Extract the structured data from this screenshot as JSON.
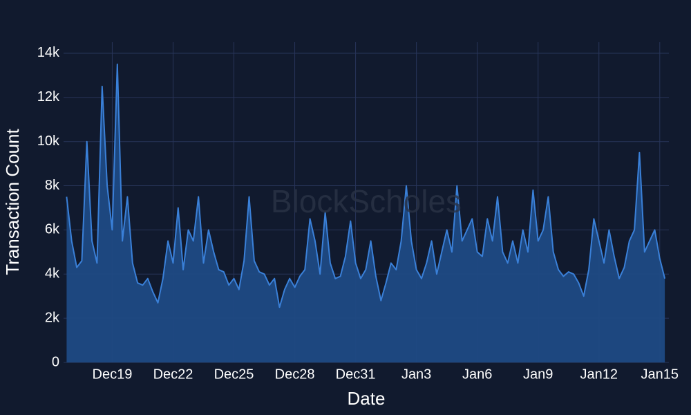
{
  "chart_data": {
    "type": "area",
    "xlabel": "Date",
    "ylabel": "Transaction Count",
    "watermark": "BlockScholes",
    "x": [
      16.75,
      17,
      17.25,
      17.5,
      17.75,
      18,
      18.25,
      18.5,
      18.75,
      19,
      19.25,
      19.5,
      19.75,
      20,
      20.25,
      20.5,
      20.75,
      21,
      21.25,
      21.5,
      21.75,
      22,
      22.25,
      22.5,
      22.75,
      23,
      23.25,
      23.5,
      23.75,
      24,
      24.25,
      24.5,
      24.75,
      25,
      25.25,
      25.5,
      25.75,
      26,
      26.25,
      26.5,
      26.75,
      27,
      27.25,
      27.5,
      27.75,
      28,
      28.25,
      28.5,
      28.75,
      29,
      29.25,
      29.5,
      29.75,
      30,
      30.25,
      30.5,
      30.75,
      31,
      31.25,
      31.5,
      31.75,
      32,
      32.25,
      32.5,
      32.75,
      33,
      33.25,
      33.5,
      33.75,
      34,
      34.25,
      34.5,
      34.75,
      35,
      35.25,
      35.5,
      35.75,
      36,
      36.25,
      36.5,
      36.75,
      37,
      37.25,
      37.5,
      37.75,
      38,
      38.25,
      38.5,
      38.75,
      39,
      39.25,
      39.5,
      39.75,
      40,
      40.25,
      40.5,
      40.75,
      41,
      41.25,
      41.5,
      41.75,
      42,
      42.25,
      42.5,
      42.75,
      43,
      43.25,
      43.5,
      43.75,
      44,
      44.25,
      44.5,
      44.75,
      45,
      45.25,
      45.5,
      45.75,
      46,
      46.25
    ],
    "values": [
      7500,
      5500,
      4300,
      4600,
      10000,
      5500,
      4500,
      12500,
      8000,
      6000,
      13500,
      5500,
      7500,
      4500,
      3600,
      3500,
      3800,
      3200,
      2700,
      3800,
      5500,
      4500,
      7000,
      4200,
      6000,
      5500,
      7500,
      4500,
      6000,
      5000,
      4200,
      4100,
      3500,
      3800,
      3300,
      4600,
      7500,
      4600,
      4100,
      4000,
      3500,
      3800,
      2500,
      3300,
      3800,
      3400,
      3900,
      4200,
      6500,
      5500,
      4000,
      6800,
      4500,
      3800,
      3900,
      4800,
      6400,
      4500,
      3800,
      4200,
      5500,
      3900,
      2800,
      3600,
      4500,
      4200,
      5500,
      8000,
      5500,
      4200,
      3800,
      4500,
      5500,
      4000,
      5000,
      6000,
      5000,
      8000,
      5500,
      6000,
      6500,
      5000,
      4800,
      6500,
      5500,
      7500,
      5000,
      4500,
      5500,
      4500,
      6000,
      5000,
      7800,
      5500,
      6000,
      7500,
      5000,
      4200,
      3900,
      4100,
      4000,
      3600,
      3000,
      4200,
      6500,
      5500,
      4500,
      6000,
      4800,
      3800,
      4300,
      5500,
      6000,
      9500,
      5000,
      5500,
      6000,
      4700,
      3800
    ],
    "color": "#3a80d8",
    "fill": "#1f4a84",
    "xlim": [
      16.6,
      46.45
    ],
    "xticks": [
      {
        "value": 19,
        "label": "Dec19"
      },
      {
        "value": 22,
        "label": "Dec22"
      },
      {
        "value": 25,
        "label": "Dec25"
      },
      {
        "value": 28,
        "label": "Dec28"
      },
      {
        "value": 31,
        "label": "Dec31"
      },
      {
        "value": 34,
        "label": "Jan3"
      },
      {
        "value": 37,
        "label": "Jan6"
      },
      {
        "value": 40,
        "label": "Jan9"
      },
      {
        "value": 43,
        "label": "Jan12"
      },
      {
        "value": 46,
        "label": "Jan15"
      }
    ],
    "ylim": [
      0,
      14500
    ],
    "yticks": [
      0,
      {
        "value": 2000,
        "label": "2k"
      },
      {
        "value": 4000,
        "label": "4k"
      },
      {
        "value": 6000,
        "label": "6k"
      },
      {
        "value": 8000,
        "label": "8k"
      },
      {
        "value": 10000,
        "label": "10k"
      },
      {
        "value": 12000,
        "label": "12k"
      },
      {
        "value": 14000,
        "label": "14k"
      }
    ],
    "grid": true
  }
}
